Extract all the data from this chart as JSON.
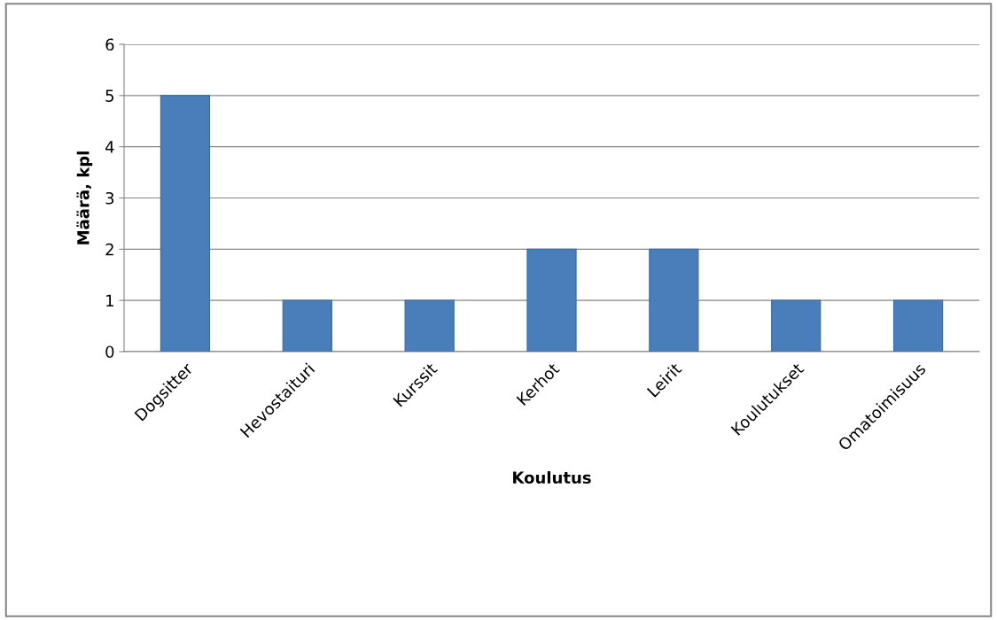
{
  "chart_data": {
    "type": "bar",
    "xlabel": "Koulutus",
    "ylabel": "Määrä, kpl",
    "categories": [
      "Dogsitter",
      "Hevostaituri",
      "Kurssit",
      "Kerhot",
      "Leirit",
      "Koulutukset",
      "Omatoimisuus"
    ],
    "values": [
      5,
      1,
      1,
      2,
      2,
      1,
      1
    ],
    "color": "#4a7ebb",
    "ylim": [
      0,
      6
    ],
    "yticks": [
      0,
      1,
      2,
      3,
      4,
      5,
      6
    ],
    "grid": "y"
  }
}
